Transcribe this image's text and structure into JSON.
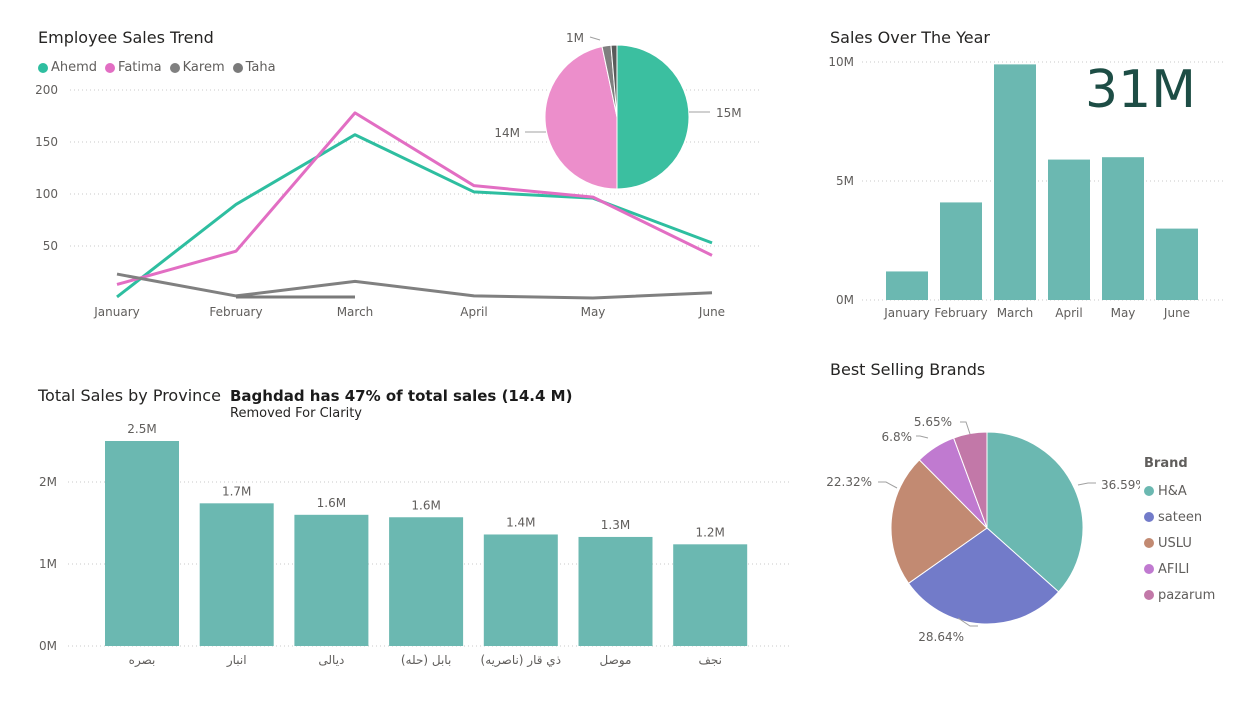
{
  "colors": {
    "teal": "#6bb8b1",
    "ahemd": "#2ebea0",
    "fatima": "#e26ec3",
    "karem": "#808080",
    "taha": "#7a7a7a",
    "pie_teal": "#3bbfa0",
    "pie_pink": "#ec8ecb",
    "pie_gray": "#7f7f7f",
    "pie_gray2": "#5a5a5a",
    "kpi": "#1d4d45",
    "brand_ha": "#6bb8b1",
    "brand_sateen": "#727bc9",
    "brand_uslu": "#c28a72",
    "brand_afili": "#c07ad0",
    "brand_pazarum": "#c278a8"
  },
  "employee_trend": {
    "title": "Employee Sales Trend",
    "legend": [
      "Ahemd",
      "Fatima",
      "Karem",
      "Taha"
    ]
  },
  "sales_year": {
    "title": "Sales Over The Year",
    "kpi": "31M"
  },
  "province": {
    "title": "Total Sales by Province",
    "callout": "Baghdad has 47% of total sales (14.4 M)",
    "note": "Removed For Clarity"
  },
  "brands": {
    "title": "Best Selling Brands",
    "legend_title": "Brand"
  },
  "chart_data": [
    {
      "type": "line",
      "title": "Employee Sales Trend",
      "categories": [
        "January",
        "February",
        "March",
        "April",
        "May",
        "June"
      ],
      "ylim": [
        0,
        200
      ],
      "yticks": [
        50,
        100,
        150,
        200
      ],
      "grid": true,
      "legend_position": "top-left",
      "series": [
        {
          "name": "Ahemd",
          "values": [
            1,
            90,
            157,
            102,
            96,
            53
          ]
        },
        {
          "name": "Fatima",
          "values": [
            13,
            45,
            178,
            108,
            97,
            41
          ]
        },
        {
          "name": "Karem",
          "values": [
            23,
            2,
            16,
            2,
            0,
            5
          ]
        },
        {
          "name": "Taha",
          "values": [
            null,
            1,
            1,
            null,
            null,
            null
          ]
        }
      ]
    },
    {
      "type": "pie",
      "title": "",
      "slices": [
        {
          "label": "15M",
          "value": 15
        },
        {
          "label": "14M",
          "value": 14
        },
        {
          "label": "1M",
          "value": 0.6
        },
        {
          "label": "",
          "value": 0.4
        }
      ]
    },
    {
      "type": "bar",
      "title": "Sales Over The Year",
      "categories": [
        "January",
        "February",
        "March",
        "April",
        "May",
        "June"
      ],
      "values": [
        1.2,
        4.1,
        9.9,
        5.9,
        6.0,
        3.0
      ],
      "units": "M",
      "ylim": [
        0,
        10
      ],
      "yticks": [
        "0M",
        "5M",
        "10M"
      ],
      "grid": true
    },
    {
      "type": "bar",
      "title": "Total Sales by Province",
      "categories": [
        "بصره",
        "انبار",
        "ديالى",
        "بابل (حله)",
        "ذي قار (ناصريه)",
        "موصل",
        "نجف"
      ],
      "values": [
        2.5,
        1.74,
        1.6,
        1.57,
        1.36,
        1.33,
        1.24
      ],
      "data_labels": [
        "2.5M",
        "1.7M",
        "1.6M",
        "1.6M",
        "1.4M",
        "1.3M",
        "1.2M"
      ],
      "ylim": [
        0,
        2.8
      ],
      "yticks": [
        "0M",
        "1M",
        "2M"
      ],
      "grid": true
    },
    {
      "type": "pie",
      "title": "Best Selling Brands",
      "legend_title": "Brand",
      "slices": [
        {
          "name": "H&A",
          "value": 36.59,
          "label": "36.59%"
        },
        {
          "name": "sateen",
          "value": 28.64,
          "label": "28.64%"
        },
        {
          "name": "USLU",
          "value": 22.32,
          "label": "22.32%"
        },
        {
          "name": "AFILI",
          "value": 6.8,
          "label": "6.8%"
        },
        {
          "name": "pazarum",
          "value": 5.65,
          "label": "5.65%"
        }
      ]
    }
  ]
}
